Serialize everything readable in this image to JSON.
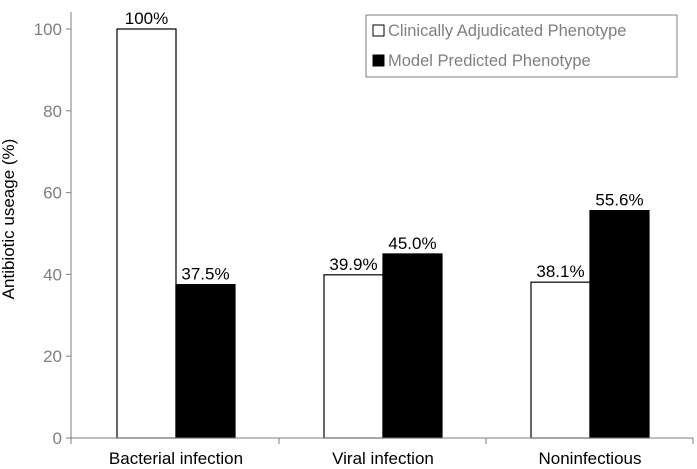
{
  "chart_data": {
    "type": "bar",
    "title": "",
    "xlabel": "",
    "ylabel": "Antibiotic useage (%)",
    "ylim": [
      0,
      100
    ],
    "yticks": [
      0,
      20,
      40,
      60,
      80,
      100
    ],
    "grid": false,
    "legend_position": "top-right",
    "categories": [
      "Bacterial infection",
      "Viral infection",
      "Noninfectious"
    ],
    "series": [
      {
        "name": "Clinically Adjudicated Phenotype",
        "values": [
          100,
          39.9,
          38.1
        ],
        "labels": [
          "100%",
          "39.9%",
          "38.1%"
        ],
        "color": "#ffffff"
      },
      {
        "name": "Model Predicted Phenotype",
        "values": [
          37.5,
          45.0,
          55.6
        ],
        "labels": [
          "37.5%",
          "45.0%",
          "55.6%"
        ],
        "color": "#000000"
      }
    ],
    "colors": {
      "axis": "#7f7f7f",
      "bar_stroke": "#000000",
      "legend_border": "#7f7f7f"
    }
  }
}
